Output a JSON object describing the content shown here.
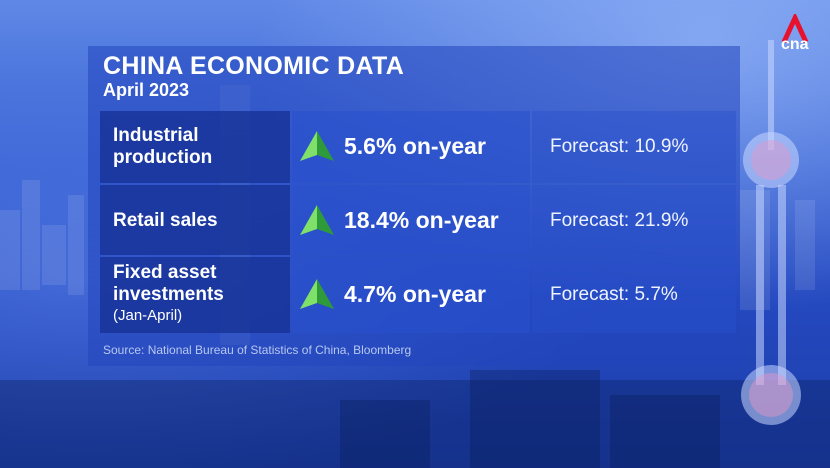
{
  "header": {
    "title": "CHINA ECONOMIC DATA",
    "subtitle": "April 2023"
  },
  "rows": [
    {
      "label_line1": "Industrial",
      "label_line2": "production",
      "label_note": "",
      "value": "5.6% on-year",
      "forecast": "Forecast: 10.9%",
      "trend_icon": "up-arrow-icon"
    },
    {
      "label_line1": "Retail sales",
      "label_line2": "",
      "label_note": "",
      "value": "18.4% on-year",
      "forecast": "Forecast: 21.9%",
      "trend_icon": "up-arrow-icon"
    },
    {
      "label_line1": "Fixed asset",
      "label_line2": "investments",
      "label_note": "(Jan-April)",
      "value": "4.7% on-year",
      "forecast": "Forecast: 5.7%",
      "trend_icon": "up-arrow-icon"
    }
  ],
  "source": "Source: National Bureau of Statistics of China, Bloomberg",
  "brand": {
    "logo_text": "cna",
    "logo_color": "#e8112d"
  },
  "colors": {
    "arrow_light": "#7fe06a",
    "arrow_dark": "#2f9a3a"
  }
}
